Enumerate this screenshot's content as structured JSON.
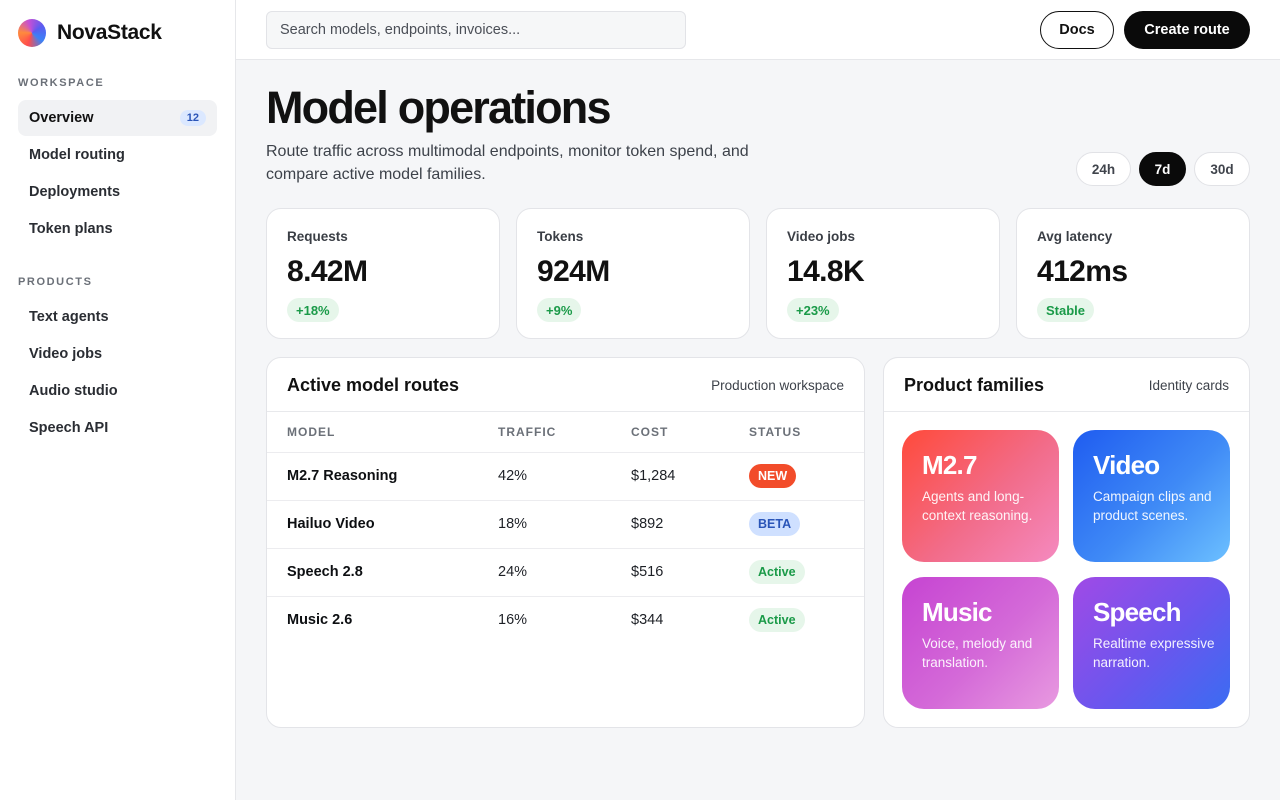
{
  "brand": {
    "name": "NovaStack",
    "logo_icon": "gradient-orb-logo"
  },
  "sidebar": {
    "workspace_heading": "WORKSPACE",
    "workspace_items": [
      {
        "label": "Overview",
        "badge": "12",
        "active": true
      },
      {
        "label": "Model routing"
      },
      {
        "label": "Deployments"
      },
      {
        "label": "Token plans"
      }
    ],
    "products_heading": "PRODUCTS",
    "product_items": [
      {
        "label": "Text agents"
      },
      {
        "label": "Video jobs"
      },
      {
        "label": "Audio studio"
      },
      {
        "label": "Speech API"
      }
    ]
  },
  "topbar": {
    "search_placeholder": "Search models, endpoints, invoices...",
    "docs_label": "Docs",
    "create_label": "Create route"
  },
  "header": {
    "title": "Model operations",
    "subtitle": "Route traffic across multimodal endpoints, monitor token spend, and compare active model families.",
    "ranges": [
      {
        "label": "24h"
      },
      {
        "label": "7d",
        "active": true
      },
      {
        "label": "30d"
      }
    ]
  },
  "stats": [
    {
      "label": "Requests",
      "value": "8.42M",
      "delta": "+18%"
    },
    {
      "label": "Tokens",
      "value": "924M",
      "delta": "+9%"
    },
    {
      "label": "Video jobs",
      "value": "14.8K",
      "delta": "+23%"
    },
    {
      "label": "Avg latency",
      "value": "412ms",
      "delta": "Stable"
    }
  ],
  "routes": {
    "title": "Active model routes",
    "meta": "Production workspace",
    "columns": [
      "MODEL",
      "TRAFFIC",
      "COST",
      "STATUS"
    ],
    "rows": [
      {
        "model": "M2.7 Reasoning",
        "traffic": "42%",
        "cost": "$1,284",
        "status": "NEW"
      },
      {
        "model": "Hailuo Video",
        "traffic": "18%",
        "cost": "$892",
        "status": "BETA"
      },
      {
        "model": "Speech 2.8",
        "traffic": "24%",
        "cost": "$516",
        "status": "Active"
      },
      {
        "model": "Music 2.6",
        "traffic": "16%",
        "cost": "$344",
        "status": "Active"
      }
    ],
    "status_colors": {
      "NEW": "#f24c2a",
      "BETA": "#cfe0ff",
      "Active": "#e6f6ea"
    }
  },
  "families": {
    "title": "Product families",
    "meta": "Identity cards",
    "cards": [
      {
        "name": "M2.7",
        "desc": "Agents and long-context reasoning.",
        "colors": [
          "#ff4a3a",
          "#f27cb4"
        ]
      },
      {
        "name": "Video",
        "desc": "Campaign clips and product scenes.",
        "colors": [
          "#1f5cf0",
          "#5cb6ff"
        ]
      },
      {
        "name": "Music",
        "desc": "Voice, melody and translation.",
        "colors": [
          "#c248d6",
          "#e08ad8"
        ]
      },
      {
        "name": "Speech",
        "desc": "Realtime expressive narration.",
        "colors": [
          "#9a4ae8",
          "#3f6ef2"
        ]
      }
    ]
  }
}
